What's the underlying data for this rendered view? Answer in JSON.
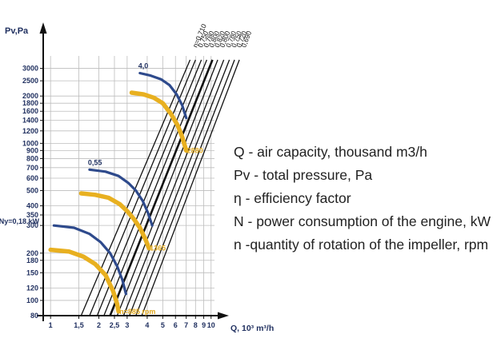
{
  "chart_data": {
    "type": "line",
    "ylabel": "Pv,Pa",
    "xlabel": "Q, 10³ m³/h",
    "x_scale": "log",
    "y_scale": "log",
    "xlim": [
      0.9,
      10.5
    ],
    "ylim": [
      80,
      3600
    ],
    "grid": true,
    "x_ticks": [
      1,
      1.5,
      2,
      2.5,
      3,
      4,
      5,
      6,
      7,
      8,
      9,
      10
    ],
    "x_tick_labels": [
      "1",
      "1,5",
      "2",
      "2,5",
      "3",
      "4",
      "5",
      "6",
      "7",
      "8",
      "9",
      "10"
    ],
    "y_ticks": [
      80,
      100,
      120,
      150,
      180,
      200,
      300,
      350,
      400,
      500,
      600,
      700,
      800,
      900,
      1000,
      1200,
      1400,
      1600,
      1800,
      2000,
      2500,
      3000
    ],
    "y_tick_labels": [
      "80",
      "100",
      "120",
      "150",
      "180",
      "200",
      "300",
      "350",
      "400",
      "500",
      "600",
      "700",
      "800",
      "900",
      "1000",
      "1200",
      "1400",
      "1600",
      "1800",
      "2000",
      "2500",
      "3000"
    ],
    "system_lines": [
      {
        "label": "η=0,710",
        "points": [
          [
            1.55,
            80
          ],
          [
            7.4,
            3400
          ]
        ]
      },
      {
        "label": "0,750",
        "points": [
          [
            1.75,
            80
          ],
          [
            8.0,
            3400
          ]
        ]
      },
      {
        "label": "0,780",
        "points": [
          [
            1.95,
            80
          ],
          [
            8.7,
            3400
          ]
        ]
      },
      {
        "label": "0,800",
        "points": [
          [
            2.15,
            80
          ],
          [
            9.4,
            3400
          ]
        ]
      },
      {
        "label": "0,820",
        "points": [
          [
            2.35,
            80
          ],
          [
            10.2,
            3400
          ]
        ]
      },
      {
        "label": "0,800",
        "points": [
          [
            2.6,
            80
          ],
          [
            11.0,
            3400
          ]
        ]
      },
      {
        "label": "0,780",
        "points": [
          [
            2.85,
            80
          ],
          [
            12.0,
            3400
          ]
        ]
      },
      {
        "label": "0,750",
        "points": [
          [
            3.1,
            80
          ],
          [
            13.0,
            3400
          ]
        ]
      },
      {
        "label": "0,720",
        "points": [
          [
            3.4,
            80
          ],
          [
            14.0,
            3400
          ]
        ]
      },
      {
        "label": "0,690",
        "points": [
          [
            3.7,
            80
          ],
          [
            15.0,
            3400
          ]
        ]
      }
    ],
    "speed_curves": [
      {
        "label": "n=885 rpm",
        "power_label": "Ny=0,18 kW",
        "points": [
          [
            1.0,
            210
          ],
          [
            1.3,
            205
          ],
          [
            1.6,
            190
          ],
          [
            1.9,
            170
          ],
          [
            2.2,
            145
          ],
          [
            2.45,
            115
          ],
          [
            2.6,
            95
          ],
          [
            2.65,
            85
          ]
        ]
      },
      {
        "label": "1365",
        "power_label": "0,55",
        "points": [
          [
            1.55,
            480
          ],
          [
            1.9,
            470
          ],
          [
            2.3,
            450
          ],
          [
            2.7,
            410
          ],
          [
            3.0,
            370
          ],
          [
            3.3,
            330
          ],
          [
            3.6,
            290
          ],
          [
            3.9,
            245
          ],
          [
            4.1,
            215
          ]
        ]
      },
      {
        "label": "2880",
        "power_label": "4,0",
        "points": [
          [
            3.2,
            2100
          ],
          [
            3.8,
            2050
          ],
          [
            4.4,
            1950
          ],
          [
            5.0,
            1800
          ],
          [
            5.6,
            1550
          ],
          [
            6.2,
            1300
          ],
          [
            6.6,
            1100
          ],
          [
            7.0,
            900
          ]
        ]
      }
    ],
    "power_curves": [
      {
        "label": "Ny=0,18 kW",
        "points": [
          [
            1.05,
            300
          ],
          [
            1.4,
            290
          ],
          [
            1.75,
            265
          ],
          [
            2.05,
            235
          ],
          [
            2.35,
            200
          ],
          [
            2.6,
            165
          ],
          [
            2.8,
            135
          ],
          [
            2.95,
            110
          ]
        ]
      },
      {
        "label": "0,55",
        "points": [
          [
            1.75,
            680
          ],
          [
            2.2,
            660
          ],
          [
            2.65,
            620
          ],
          [
            3.05,
            560
          ],
          [
            3.4,
            500
          ],
          [
            3.75,
            430
          ],
          [
            4.05,
            360
          ],
          [
            4.3,
            300
          ]
        ]
      },
      {
        "label": "4,0",
        "points": [
          [
            3.6,
            2800
          ],
          [
            4.2,
            2700
          ],
          [
            4.9,
            2550
          ],
          [
            5.5,
            2350
          ],
          [
            6.1,
            2050
          ],
          [
            6.6,
            1750
          ],
          [
            7.0,
            1450
          ]
        ]
      }
    ],
    "colors": {
      "speed": "#E8B020",
      "power": "#2E4A8C",
      "lines": "#111111",
      "grid": "#BDBDBD",
      "speed_text": "#E0A820"
    }
  },
  "legend": {
    "q": "Q - air capacity, thousand m3/h",
    "pv": "Pv - total pressure, Pa",
    "eta": "η - efficiency factor",
    "n_power": "N - power consumption of the engine, kW",
    "n_rpm": "n -quantity of rotation of the impeller, rpm"
  }
}
